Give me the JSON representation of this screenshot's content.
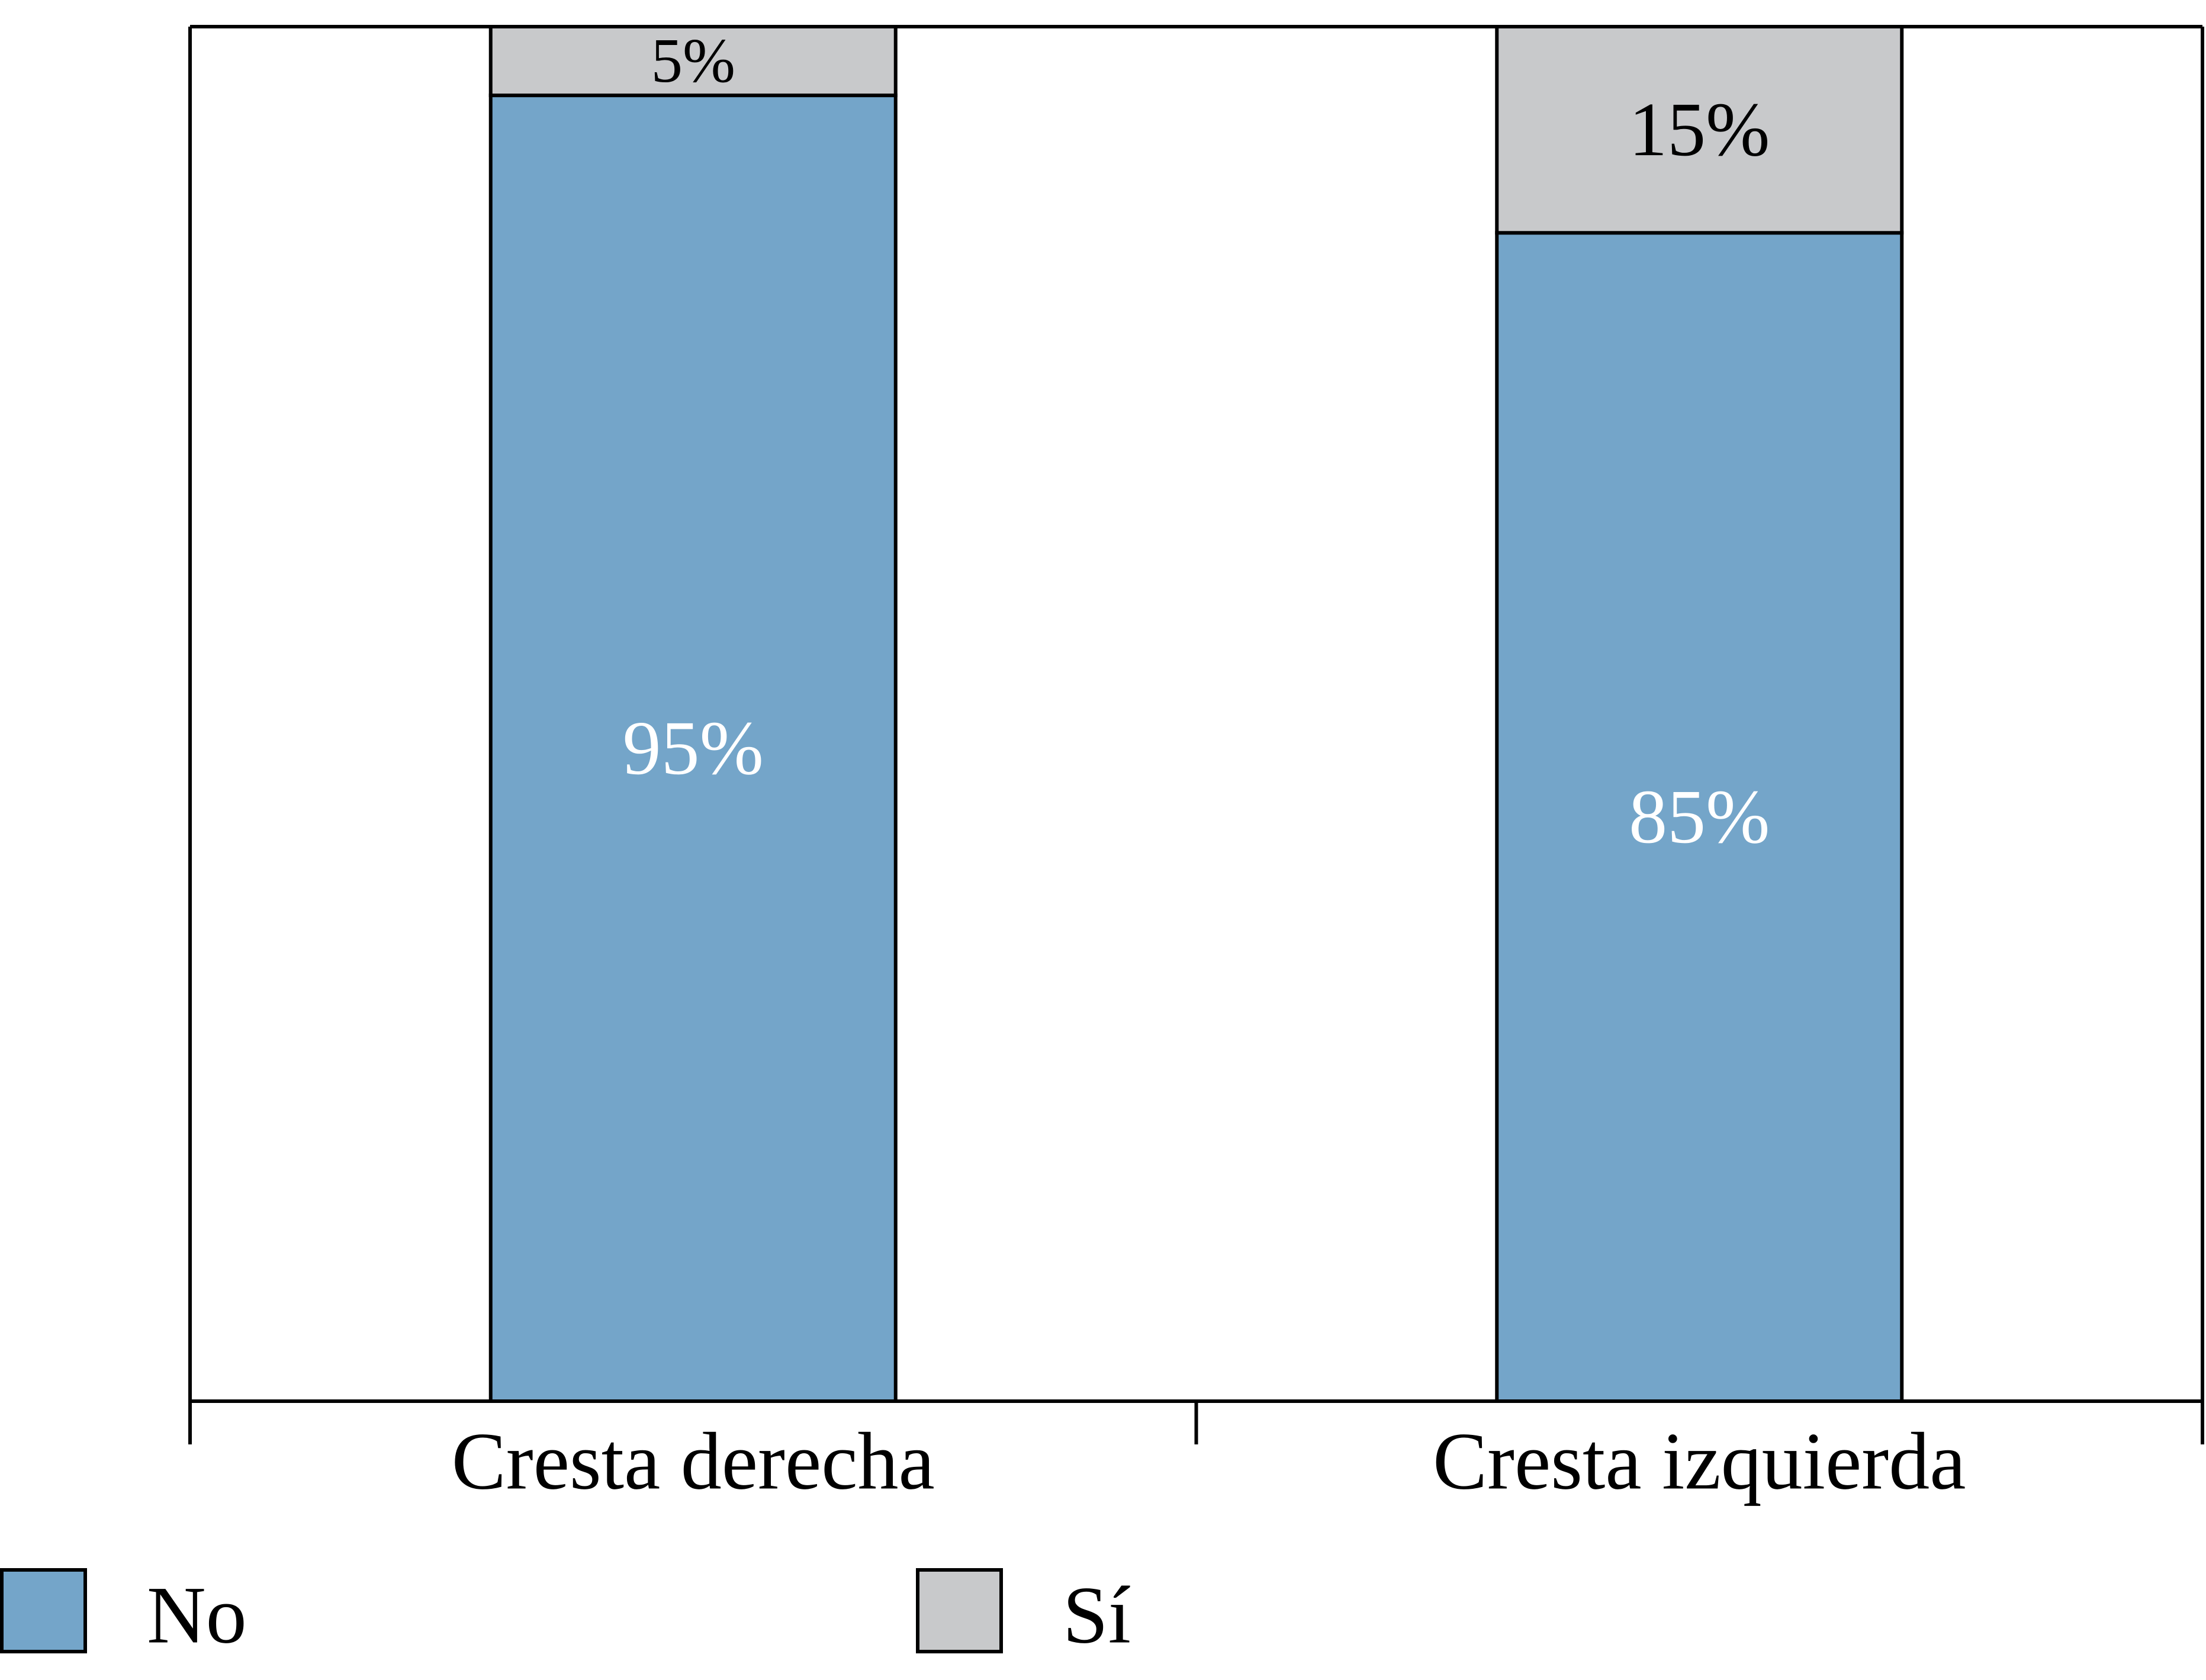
{
  "chart_data": {
    "type": "bar",
    "stacked": true,
    "normalized_percent": true,
    "categories": [
      "Cresta derecha",
      "Cresta izquierda"
    ],
    "series": [
      {
        "name": "No",
        "color": "#74a5c9",
        "values": [
          95,
          85
        ],
        "labels": [
          "95%",
          "85%"
        ],
        "label_color": "#ffffff"
      },
      {
        "name": "Sí",
        "color": "#c8c9cb",
        "values": [
          5,
          15
        ],
        "labels": [
          "5%",
          "15%"
        ],
        "label_color": "#000000"
      }
    ],
    "ylim": [
      0,
      100
    ],
    "y_axis_visible": false,
    "grid": false,
    "legend_position": "bottom"
  }
}
